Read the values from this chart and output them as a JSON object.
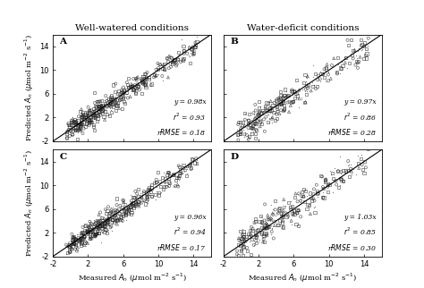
{
  "col_titles": [
    "Well-watered conditions",
    "Water-deficit conditions"
  ],
  "panel_labels": [
    "A",
    "B",
    "C",
    "D"
  ],
  "equations": [
    "y = 0.98x",
    "y = 0.97x",
    "y = 0.96x",
    "y = 1.03x"
  ],
  "r2_values": [
    "0.93",
    "0.86",
    "0.94",
    "0.85"
  ],
  "rrmse_values": [
    "0.18",
    "0.28",
    "0.17",
    "0.30"
  ],
  "xlim": [
    -2,
    16
  ],
  "ylim": [
    -2,
    16
  ],
  "xticks": [
    -2,
    2,
    6,
    10,
    14
  ],
  "yticks": [
    -2,
    2,
    6,
    10,
    14
  ],
  "xticklabels": [
    "-2",
    "2",
    "6",
    "10",
    "14"
  ],
  "yticklabels": [
    "-2",
    "2",
    "6",
    "10",
    "14"
  ],
  "xlabel": "Measured $\\mathit{A_n}$ ($\\mu$mol m$^{-2}$ s$^{-1}$)",
  "ylabel": "Predicted $\\mathit{A_n}$ ($\\mu$mol m$^{-2}$ s$^{-1}$)",
  "bg_color": "#ffffff",
  "scatter_color": "#222222",
  "n_points": [
    500,
    300,
    500,
    300
  ],
  "seeds": [
    1,
    2,
    3,
    4
  ],
  "slopes": [
    0.98,
    0.97,
    0.96,
    1.03
  ],
  "noise": [
    0.9,
    1.2,
    0.9,
    1.3
  ],
  "marker_types": [
    "s",
    "o",
    "^",
    "."
  ],
  "marker_portions": [
    0.35,
    0.25,
    0.1,
    0.3
  ]
}
